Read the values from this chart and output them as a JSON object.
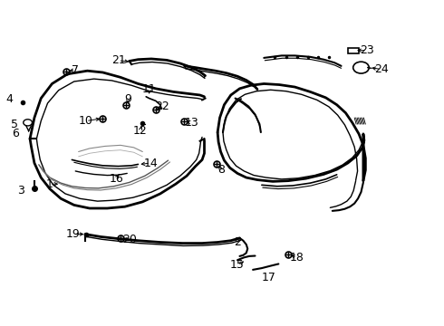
{
  "bg_color": "#ffffff",
  "fig_width": 4.9,
  "fig_height": 3.6,
  "dpi": 100,
  "line_color": "#000000",
  "text_color": "#000000",
  "font_size": 9
}
